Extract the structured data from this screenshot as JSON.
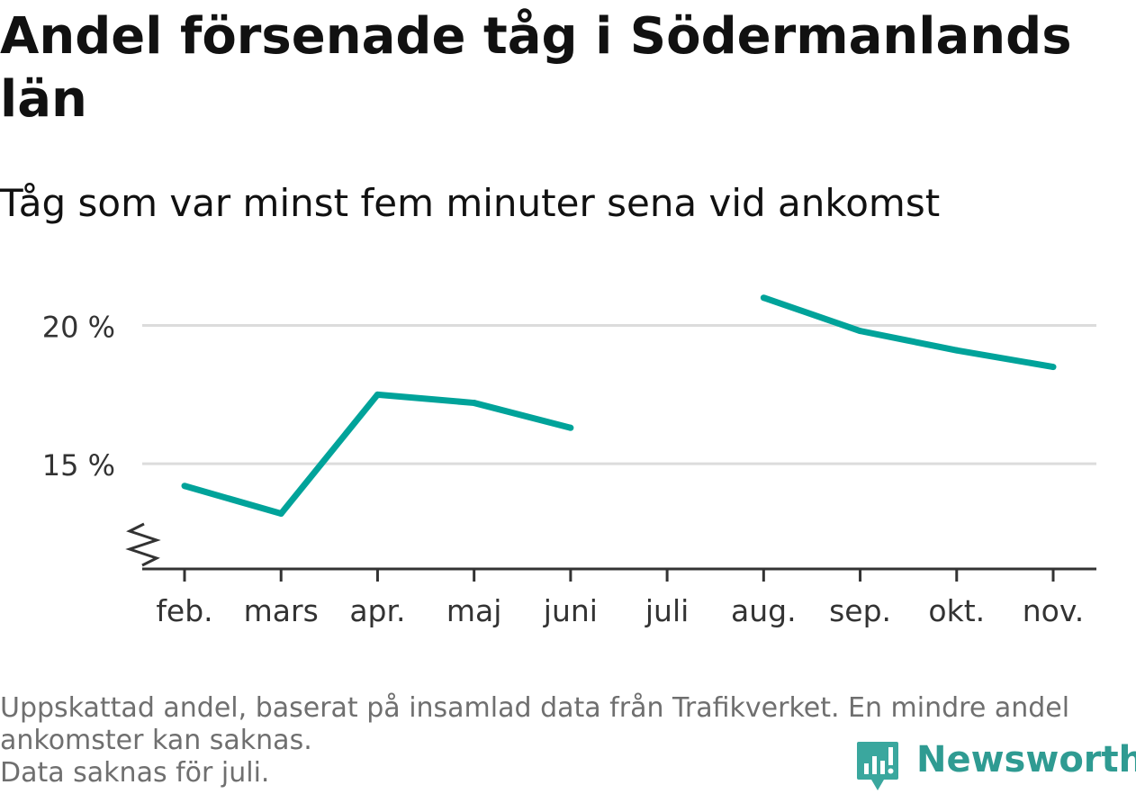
{
  "chart_data": {
    "type": "line",
    "title": "Andel försenade tåg i Södermanlands län",
    "subtitle": "Tåg som var minst fem minuter sena vid ankomst",
    "categories": [
      "feb.",
      "mars",
      "apr.",
      "maj",
      "juni",
      "juli",
      "aug.",
      "sep.",
      "okt.",
      "nov."
    ],
    "series": [
      {
        "values": [
          14.2,
          13.2,
          17.5,
          17.2,
          16.3,
          null,
          21.0,
          19.8,
          19.1,
          18.5
        ]
      }
    ],
    "ylim": [
      11.2,
      22
    ],
    "yticks": [
      15,
      20
    ],
    "ytick_labels": [
      "15 %",
      "20 %"
    ],
    "axis_break": true,
    "grid": true,
    "line_color": "#00a39a",
    "grid_color": "#dcdcdc",
    "axis_color": "#333333"
  },
  "footer": {
    "note_line1": "Uppskattad andel, baserat på insamlad data från Trafikverket. En mindre andel",
    "note_line2": "ankomster kan saknas.",
    "note_line3": "Data saknas för juli."
  },
  "brand": {
    "name": "Newsworthy",
    "icon": "newsworthy-logo-icon",
    "color": "#2f9b92"
  }
}
